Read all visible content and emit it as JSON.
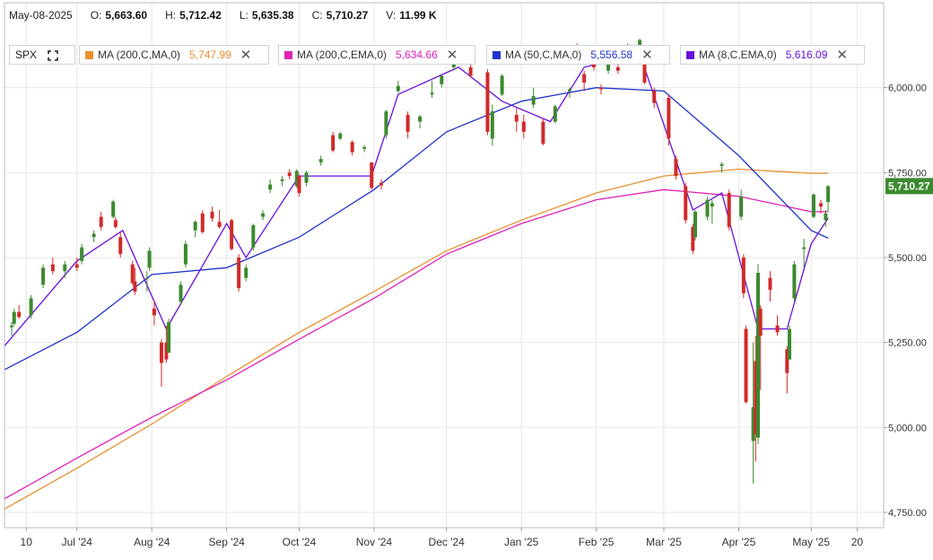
{
  "ohlc_bar": {
    "date": "May-08-2025",
    "open_label": "O:",
    "open": "5,663.60",
    "high_label": "H:",
    "high": "5,712.42",
    "low_label": "L:",
    "low": "5,635.38",
    "close_label": "C:",
    "close": "5,710.27",
    "volume_label": "V:",
    "volume": "11.99 K"
  },
  "symbol": "SPX",
  "legend": [
    {
      "name": "MA (200,C,MA,0)",
      "value": "5,747.99",
      "color": "#e8902c"
    },
    {
      "name": "MA (200,C,EMA,0)",
      "value": "5,634.66",
      "color": "#e020b8"
    },
    {
      "name": "MA (50,C,MA,0)",
      "value": "5,556.58",
      "color": "#1f34c9"
    },
    {
      "name": "MA (8,C,EMA,0)",
      "value": "5,616.09",
      "color": "#6a10d8"
    }
  ],
  "icons": {
    "close": "close-icon",
    "expand": "expand-icon"
  },
  "colors": {
    "up": "#3c8a2f",
    "down": "#d02a2a",
    "last_price_bg": "#3c8a2f",
    "grid": "#e6e6e6"
  },
  "chart_data": {
    "type": "candlestick",
    "y_ticks": [
      "6,000.00",
      "5,750.00",
      "5,500.00",
      "5,250.00",
      "5,000.00",
      "4,750.00"
    ],
    "y_tick_values": [
      6000,
      5750,
      5500,
      5250,
      5000,
      4750
    ],
    "ylim": [
      4705,
      6250
    ],
    "x_ticks": [
      "10",
      "Jul '24",
      "Aug '24",
      "Sep '24",
      "Oct '24",
      "Nov '24",
      "Dec '24",
      "Jan '25",
      "Feb '25",
      "Mar '25",
      "Apr '25",
      "May '25",
      "20"
    ],
    "x_tick_dates": [
      "2024-06-10",
      "2024-07-01",
      "2024-08-01",
      "2024-09-01",
      "2024-10-01",
      "2024-11-01",
      "2024-12-01",
      "2025-01-01",
      "2025-02-01",
      "2025-03-01",
      "2025-04-01",
      "2025-05-01",
      "2025-05-20"
    ],
    "last_price": "5,710.27",
    "last_price_value": 5710.27,
    "candles": [
      {
        "date": "2024-06-04",
        "o": 5295,
        "h": 5310,
        "l": 5270,
        "c": 5300
      },
      {
        "date": "2024-06-05",
        "o": 5305,
        "h": 5350,
        "l": 5300,
        "c": 5340
      },
      {
        "date": "2024-06-07",
        "o": 5340,
        "h": 5360,
        "l": 5320,
        "c": 5325
      },
      {
        "date": "2024-06-12",
        "o": 5330,
        "h": 5390,
        "l": 5320,
        "c": 5380
      },
      {
        "date": "2024-06-17",
        "o": 5420,
        "h": 5480,
        "l": 5410,
        "c": 5470
      },
      {
        "date": "2024-06-21",
        "o": 5480,
        "h": 5500,
        "l": 5450,
        "c": 5460
      },
      {
        "date": "2024-06-26",
        "o": 5460,
        "h": 5490,
        "l": 5440,
        "c": 5480
      },
      {
        "date": "2024-07-01",
        "o": 5480,
        "h": 5500,
        "l": 5460,
        "c": 5470
      },
      {
        "date": "2024-07-03",
        "o": 5490,
        "h": 5540,
        "l": 5480,
        "c": 5530
      },
      {
        "date": "2024-07-08",
        "o": 5560,
        "h": 5580,
        "l": 5545,
        "c": 5570
      },
      {
        "date": "2024-07-11",
        "o": 5620,
        "h": 5635,
        "l": 5580,
        "c": 5590
      },
      {
        "date": "2024-07-16",
        "o": 5620,
        "h": 5670,
        "l": 5615,
        "c": 5665
      },
      {
        "date": "2024-07-17",
        "o": 5610,
        "h": 5620,
        "l": 5585,
        "c": 5590
      },
      {
        "date": "2024-07-19",
        "o": 5560,
        "h": 5575,
        "l": 5500,
        "c": 5510
      },
      {
        "date": "2024-07-24",
        "o": 5480,
        "h": 5490,
        "l": 5420,
        "c": 5425
      },
      {
        "date": "2024-07-25",
        "o": 5430,
        "h": 5470,
        "l": 5390,
        "c": 5400
      },
      {
        "date": "2024-07-30",
        "o": 5440,
        "h": 5460,
        "l": 5400,
        "c": 5440
      },
      {
        "date": "2024-07-31",
        "o": 5470,
        "h": 5530,
        "l": 5460,
        "c": 5520
      },
      {
        "date": "2024-08-02",
        "o": 5350,
        "h": 5375,
        "l": 5300,
        "c": 5330
      },
      {
        "date": "2024-08-05",
        "o": 5250,
        "h": 5260,
        "l": 5120,
        "c": 5190
      },
      {
        "date": "2024-08-07",
        "o": 5250,
        "h": 5300,
        "l": 5190,
        "c": 5200
      },
      {
        "date": "2024-08-08",
        "o": 5220,
        "h": 5320,
        "l": 5220,
        "c": 5310
      },
      {
        "date": "2024-08-13",
        "o": 5370,
        "h": 5430,
        "l": 5360,
        "c": 5420
      },
      {
        "date": "2024-08-15",
        "o": 5480,
        "h": 5550,
        "l": 5470,
        "c": 5540
      },
      {
        "date": "2024-08-19",
        "o": 5580,
        "h": 5610,
        "l": 5560,
        "c": 5605
      },
      {
        "date": "2024-08-22",
        "o": 5630,
        "h": 5640,
        "l": 5570,
        "c": 5575
      },
      {
        "date": "2024-08-26",
        "o": 5635,
        "h": 5650,
        "l": 5605,
        "c": 5615
      },
      {
        "date": "2024-08-29",
        "o": 5605,
        "h": 5640,
        "l": 5585,
        "c": 5590
      },
      {
        "date": "2024-09-03",
        "o": 5610,
        "h": 5615,
        "l": 5520,
        "c": 5525
      },
      {
        "date": "2024-09-06",
        "o": 5500,
        "h": 5510,
        "l": 5400,
        "c": 5410
      },
      {
        "date": "2024-09-09",
        "o": 5440,
        "h": 5480,
        "l": 5430,
        "c": 5470
      },
      {
        "date": "2024-09-12",
        "o": 5530,
        "h": 5600,
        "l": 5520,
        "c": 5595
      },
      {
        "date": "2024-09-16",
        "o": 5620,
        "h": 5640,
        "l": 5610,
        "c": 5630
      },
      {
        "date": "2024-09-19",
        "o": 5700,
        "h": 5730,
        "l": 5690,
        "c": 5715
      },
      {
        "date": "2024-09-24",
        "o": 5725,
        "h": 5740,
        "l": 5710,
        "c": 5730
      },
      {
        "date": "2024-09-27",
        "o": 5750,
        "h": 5760,
        "l": 5730,
        "c": 5740
      },
      {
        "date": "2024-09-30",
        "o": 5710,
        "h": 5760,
        "l": 5705,
        "c": 5755
      },
      {
        "date": "2024-10-01",
        "o": 5740,
        "h": 5745,
        "l": 5680,
        "c": 5690
      },
      {
        "date": "2024-10-04",
        "o": 5720,
        "h": 5755,
        "l": 5710,
        "c": 5750
      },
      {
        "date": "2024-10-10",
        "o": 5780,
        "h": 5800,
        "l": 5770,
        "c": 5790
      },
      {
        "date": "2024-10-15",
        "o": 5860,
        "h": 5870,
        "l": 5810,
        "c": 5815
      },
      {
        "date": "2024-10-18",
        "o": 5850,
        "h": 5870,
        "l": 5845,
        "c": 5865
      },
      {
        "date": "2024-10-23",
        "o": 5840,
        "h": 5845,
        "l": 5800,
        "c": 5810
      },
      {
        "date": "2024-10-28",
        "o": 5820,
        "h": 5830,
        "l": 5810,
        "c": 5825
      },
      {
        "date": "2024-10-31",
        "o": 5780,
        "h": 5780,
        "l": 5700,
        "c": 5705
      },
      {
        "date": "2024-11-04",
        "o": 5720,
        "h": 5730,
        "l": 5700,
        "c": 5712
      },
      {
        "date": "2024-11-06",
        "o": 5860,
        "h": 5935,
        "l": 5850,
        "c": 5930
      },
      {
        "date": "2024-11-11",
        "o": 5990,
        "h": 6020,
        "l": 5985,
        "c": 6005
      },
      {
        "date": "2024-11-15",
        "o": 5920,
        "h": 5930,
        "l": 5850,
        "c": 5870
      },
      {
        "date": "2024-11-20",
        "o": 5900,
        "h": 5920,
        "l": 5880,
        "c": 5915
      },
      {
        "date": "2024-11-25",
        "o": 5980,
        "h": 6020,
        "l": 5970,
        "c": 5985
      },
      {
        "date": "2024-11-29",
        "o": 6010,
        "h": 6040,
        "l": 6000,
        "c": 6035
      },
      {
        "date": "2024-12-04",
        "o": 6060,
        "h": 6090,
        "l": 6050,
        "c": 6085
      },
      {
        "date": "2024-12-06",
        "o": 6080,
        "h": 6100,
        "l": 6070,
        "c": 6090
      },
      {
        "date": "2024-12-11",
        "o": 6060,
        "h": 6070,
        "l": 6030,
        "c": 6035
      },
      {
        "date": "2024-12-18",
        "o": 6045,
        "h": 6055,
        "l": 5860,
        "c": 5870
      },
      {
        "date": "2024-12-20",
        "o": 5850,
        "h": 5950,
        "l": 5830,
        "c": 5930
      },
      {
        "date": "2024-12-24",
        "o": 5980,
        "h": 6040,
        "l": 5975,
        "c": 6035
      },
      {
        "date": "2024-12-30",
        "o": 5920,
        "h": 5940,
        "l": 5870,
        "c": 5900
      },
      {
        "date": "2025-01-02",
        "o": 5900,
        "h": 5920,
        "l": 5850,
        "c": 5870
      },
      {
        "date": "2025-01-06",
        "o": 5950,
        "h": 6000,
        "l": 5940,
        "c": 5975
      },
      {
        "date": "2025-01-10",
        "o": 5900,
        "h": 5910,
        "l": 5830,
        "c": 5835
      },
      {
        "date": "2025-01-15",
        "o": 5900,
        "h": 5950,
        "l": 5895,
        "c": 5945
      },
      {
        "date": "2025-01-21",
        "o": 5990,
        "h": 6000,
        "l": 5970,
        "c": 5995
      },
      {
        "date": "2025-01-24",
        "o": 6110,
        "h": 6130,
        "l": 6090,
        "c": 6100
      },
      {
        "date": "2025-01-27",
        "o": 6040,
        "h": 6050,
        "l": 5990,
        "c": 6015
      },
      {
        "date": "2025-01-31",
        "o": 6090,
        "h": 6110,
        "l": 6050,
        "c": 6060
      },
      {
        "date": "2025-02-03",
        "o": 6000,
        "h": 6010,
        "l": 5980,
        "c": 5995
      },
      {
        "date": "2025-02-06",
        "o": 6050,
        "h": 6090,
        "l": 6040,
        "c": 6080
      },
      {
        "date": "2025-02-10",
        "o": 6060,
        "h": 6080,
        "l": 6040,
        "c": 6050
      },
      {
        "date": "2025-02-14",
        "o": 6110,
        "h": 6130,
        "l": 6100,
        "c": 6120
      },
      {
        "date": "2025-02-19",
        "o": 6125,
        "h": 6145,
        "l": 6115,
        "c": 6140
      },
      {
        "date": "2025-02-21",
        "o": 6115,
        "h": 6120,
        "l": 6010,
        "c": 6015
      },
      {
        "date": "2025-02-25",
        "o": 5990,
        "h": 6000,
        "l": 5940,
        "c": 5955
      },
      {
        "date": "2025-03-03",
        "o": 5970,
        "h": 5980,
        "l": 5830,
        "c": 5850
      },
      {
        "date": "2025-03-06",
        "o": 5790,
        "h": 5800,
        "l": 5730,
        "c": 5740
      },
      {
        "date": "2025-03-10",
        "o": 5710,
        "h": 5720,
        "l": 5600,
        "c": 5610
      },
      {
        "date": "2025-03-13",
        "o": 5590,
        "h": 5600,
        "l": 5510,
        "c": 5520
      },
      {
        "date": "2025-03-14",
        "o": 5560,
        "h": 5640,
        "l": 5550,
        "c": 5635
      },
      {
        "date": "2025-03-19",
        "o": 5620,
        "h": 5680,
        "l": 5610,
        "c": 5670
      },
      {
        "date": "2025-03-21",
        "o": 5650,
        "h": 5670,
        "l": 5600,
        "c": 5660
      },
      {
        "date": "2025-03-25",
        "o": 5770,
        "h": 5780,
        "l": 5750,
        "c": 5775
      },
      {
        "date": "2025-03-28",
        "o": 5690,
        "h": 5700,
        "l": 5580,
        "c": 5590
      },
      {
        "date": "2025-04-02",
        "o": 5620,
        "h": 5700,
        "l": 5610,
        "c": 5680
      },
      {
        "date": "2025-04-03",
        "o": 5500,
        "h": 5510,
        "l": 5380,
        "c": 5395
      },
      {
        "date": "2025-04-04",
        "o": 5290,
        "h": 5300,
        "l": 5070,
        "c": 5075
      },
      {
        "date": "2025-04-07",
        "o": 4960,
        "h": 5250,
        "l": 4835,
        "c": 5060
      },
      {
        "date": "2025-04-08",
        "o": 5195,
        "h": 5270,
        "l": 4900,
        "c": 4980
      },
      {
        "date": "2025-04-09",
        "o": 4970,
        "h": 5480,
        "l": 4950,
        "c": 5455
      },
      {
        "date": "2025-04-10",
        "o": 5350,
        "h": 5360,
        "l": 5110,
        "c": 5270
      },
      {
        "date": "2025-04-14",
        "o": 5440,
        "h": 5460,
        "l": 5370,
        "c": 5405
      },
      {
        "date": "2025-04-17",
        "o": 5300,
        "h": 5330,
        "l": 5270,
        "c": 5280
      },
      {
        "date": "2025-04-21",
        "o": 5230,
        "h": 5240,
        "l": 5100,
        "c": 5160
      },
      {
        "date": "2025-04-22",
        "o": 5200,
        "h": 5300,
        "l": 5200,
        "c": 5290
      },
      {
        "date": "2025-04-24",
        "o": 5380,
        "h": 5490,
        "l": 5370,
        "c": 5480
      },
      {
        "date": "2025-04-28",
        "o": 5525,
        "h": 5555,
        "l": 5470,
        "c": 5530
      },
      {
        "date": "2025-05-02",
        "o": 5620,
        "h": 5690,
        "l": 5615,
        "c": 5685
      },
      {
        "date": "2025-05-05",
        "o": 5660,
        "h": 5670,
        "l": 5630,
        "c": 5650
      },
      {
        "date": "2025-05-07",
        "o": 5610,
        "h": 5640,
        "l": 5590,
        "c": 5630
      },
      {
        "date": "2025-05-08",
        "o": 5663.6,
        "h": 5712.42,
        "l": 5635.38,
        "c": 5710.27
      }
    ],
    "series": [
      {
        "name": "MA (200,C,MA,0)",
        "type": "line",
        "points": [
          [
            "2024-06-01",
            4760
          ],
          [
            "2024-07-01",
            4880
          ],
          [
            "2024-08-01",
            5010
          ],
          [
            "2024-09-01",
            5150
          ],
          [
            "2024-10-01",
            5280
          ],
          [
            "2024-11-01",
            5400
          ],
          [
            "2024-12-01",
            5520
          ],
          [
            "2025-01-01",
            5610
          ],
          [
            "2025-02-01",
            5690
          ],
          [
            "2025-03-01",
            5740
          ],
          [
            "2025-04-01",
            5760
          ],
          [
            "2025-05-01",
            5748
          ],
          [
            "2025-05-08",
            5748
          ]
        ]
      },
      {
        "name": "MA (200,C,EMA,0)",
        "type": "line",
        "points": [
          [
            "2024-06-01",
            4790
          ],
          [
            "2024-07-01",
            4910
          ],
          [
            "2024-08-01",
            5030
          ],
          [
            "2024-09-01",
            5140
          ],
          [
            "2024-10-01",
            5260
          ],
          [
            "2024-11-01",
            5380
          ],
          [
            "2024-12-01",
            5510
          ],
          [
            "2025-01-01",
            5600
          ],
          [
            "2025-02-01",
            5670
          ],
          [
            "2025-03-01",
            5700
          ],
          [
            "2025-04-01",
            5680
          ],
          [
            "2025-05-01",
            5635
          ],
          [
            "2025-05-08",
            5635
          ]
        ]
      },
      {
        "name": "MA (50,C,MA,0)",
        "type": "line",
        "points": [
          [
            "2024-06-01",
            5170
          ],
          [
            "2024-07-01",
            5280
          ],
          [
            "2024-08-01",
            5450
          ],
          [
            "2024-09-01",
            5470
          ],
          [
            "2024-10-01",
            5560
          ],
          [
            "2024-11-01",
            5700
          ],
          [
            "2024-12-01",
            5870
          ],
          [
            "2025-01-01",
            5960
          ],
          [
            "2025-02-01",
            6000
          ],
          [
            "2025-03-01",
            5990
          ],
          [
            "2025-04-01",
            5800
          ],
          [
            "2025-05-01",
            5580
          ],
          [
            "2025-05-08",
            5557
          ]
        ]
      },
      {
        "name": "MA (8,C,EMA,0)",
        "type": "line",
        "points": [
          [
            "2024-06-01",
            5240
          ],
          [
            "2024-07-01",
            5490
          ],
          [
            "2024-07-20",
            5580
          ],
          [
            "2024-08-07",
            5290
          ],
          [
            "2024-09-01",
            5600
          ],
          [
            "2024-09-09",
            5500
          ],
          [
            "2024-10-01",
            5740
          ],
          [
            "2024-10-31",
            5740
          ],
          [
            "2024-11-11",
            5980
          ],
          [
            "2024-12-06",
            6060
          ],
          [
            "2024-12-24",
            5960
          ],
          [
            "2025-01-13",
            5900
          ],
          [
            "2025-01-27",
            6060
          ],
          [
            "2025-02-19",
            6100
          ],
          [
            "2025-03-13",
            5640
          ],
          [
            "2025-03-25",
            5690
          ],
          [
            "2025-04-09",
            5290
          ],
          [
            "2025-04-21",
            5290
          ],
          [
            "2025-05-01",
            5540
          ],
          [
            "2025-05-08",
            5616
          ]
        ]
      }
    ]
  }
}
